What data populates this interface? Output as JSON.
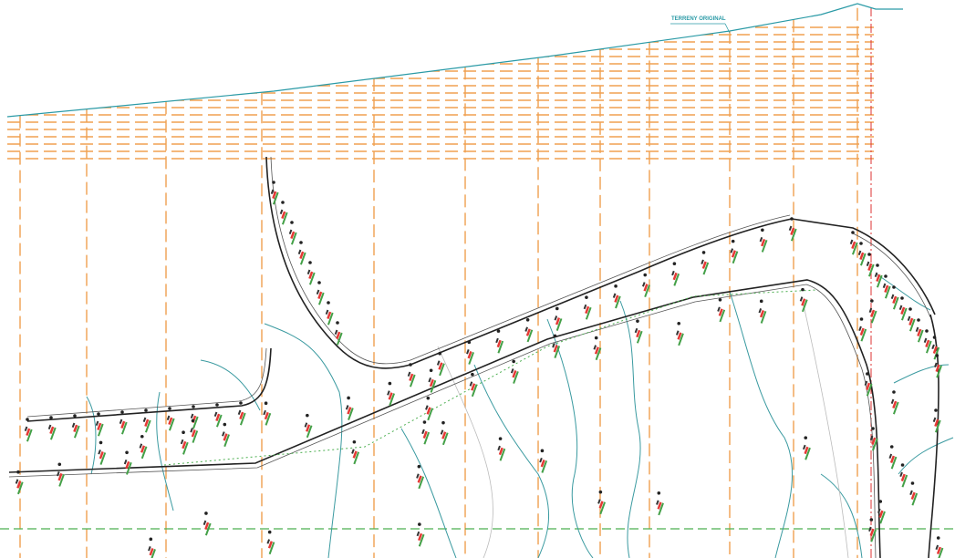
{
  "labels": {
    "terrain": "TERRENY ORIGINAL"
  }
}
